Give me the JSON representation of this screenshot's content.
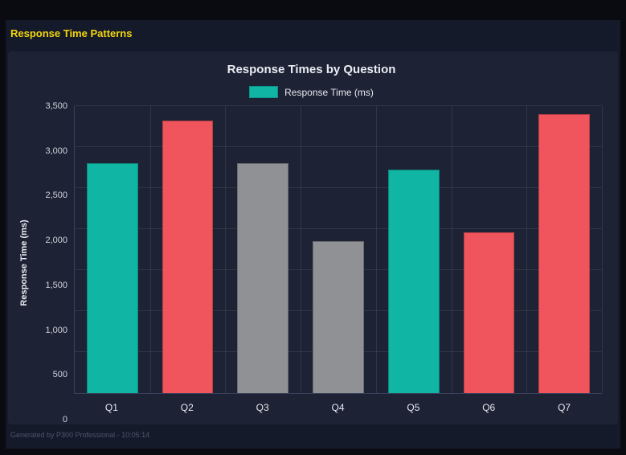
{
  "page": {
    "header_title": "Response Time Patterns",
    "footer_text": "Generated by P300 Professional - 10:05:14"
  },
  "colors": {
    "teal": "#10b5a3",
    "red": "#f0545c",
    "gray": "#8f9195",
    "header_yellow": "#f2d60a",
    "card_background": "#1d2335",
    "page_background": "#151a2b"
  },
  "chart_data": {
    "type": "bar",
    "title": "Response Times by Question",
    "legend_position": "top",
    "xlabel": "",
    "ylabel": "Response Time (ms)",
    "categories": [
      "Q1",
      "Q2",
      "Q3",
      "Q4",
      "Q5",
      "Q6",
      "Q7"
    ],
    "series": [
      {
        "name": "Response Time (ms)",
        "values": [
          2800,
          3320,
          2800,
          1850,
          2730,
          1960,
          3400
        ]
      }
    ],
    "bar_colors": [
      "#10b5a3",
      "#f0545c",
      "#8f9195",
      "#8f9195",
      "#10b5a3",
      "#f0545c",
      "#f0545c"
    ],
    "ylim": [
      0,
      3500
    ],
    "yticks": [
      0,
      500,
      1000,
      1500,
      2000,
      2500,
      3000,
      3500
    ],
    "ytick_labels": [
      "0",
      "500",
      "1,000",
      "1,500",
      "2,000",
      "2,500",
      "3,000",
      "3,500"
    ],
    "grid": true
  }
}
